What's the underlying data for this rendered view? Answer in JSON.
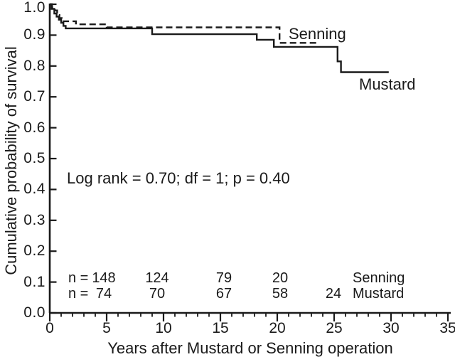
{
  "chart_data": {
    "type": "line",
    "subtype": "kaplan-meier-step-curves",
    "title": "",
    "xlabel": "Years after Mustard or Senning operation",
    "ylabel": "Cumulative probability of survival",
    "xlim": [
      0,
      35
    ],
    "ylim": [
      0.0,
      1.0
    ],
    "grid": "off",
    "x_major_ticks": [
      "0",
      "5",
      "10",
      "15",
      "20",
      "25",
      "30",
      "35"
    ],
    "x_minor_tick_step": 1,
    "y_ticks": [
      "0.0",
      "0.1",
      "0.2",
      "0.3",
      "0.4",
      "0.5",
      "0.6",
      "0.7",
      "0.8",
      "0.9",
      "1.0"
    ],
    "annotation": "Log rank = 0.70; df = 1; p = 0.40",
    "line_color": "#1a1a1a",
    "background_color": "#ffffff",
    "series": [
      {
        "name": "Senning",
        "line_style": "dashed",
        "steps": [
          [
            0,
            1.0
          ],
          [
            0.2,
            0.99
          ],
          [
            0.45,
            0.98
          ],
          [
            0.65,
            0.965
          ],
          [
            0.85,
            0.955
          ],
          [
            1.05,
            0.945
          ],
          [
            2.3,
            0.935
          ],
          [
            5.0,
            0.925
          ],
          [
            20.2,
            0.875
          ]
        ],
        "end_x": 23.5
      },
      {
        "name": "Mustard",
        "line_style": "solid",
        "steps": [
          [
            0,
            1.0
          ],
          [
            0.15,
            0.985
          ],
          [
            0.4,
            0.97
          ],
          [
            0.6,
            0.96
          ],
          [
            0.8,
            0.95
          ],
          [
            1.0,
            0.94
          ],
          [
            1.2,
            0.93
          ],
          [
            1.4,
            0.922
          ],
          [
            9.0,
            0.903
          ],
          [
            18.2,
            0.885
          ],
          [
            19.7,
            0.862
          ],
          [
            25.3,
            0.815
          ],
          [
            25.6,
            0.78
          ]
        ],
        "end_x": 29.8
      }
    ],
    "numbers_at_risk": {
      "rows": [
        {
          "prefix": "n =",
          "counts": [
            "148",
            "124",
            "79",
            "20"
          ],
          "label": "Senning"
        },
        {
          "prefix": "n =",
          "counts": [
            "74",
            "70",
            "67",
            "58",
            "24"
          ],
          "label": "Mustard"
        }
      ]
    }
  }
}
